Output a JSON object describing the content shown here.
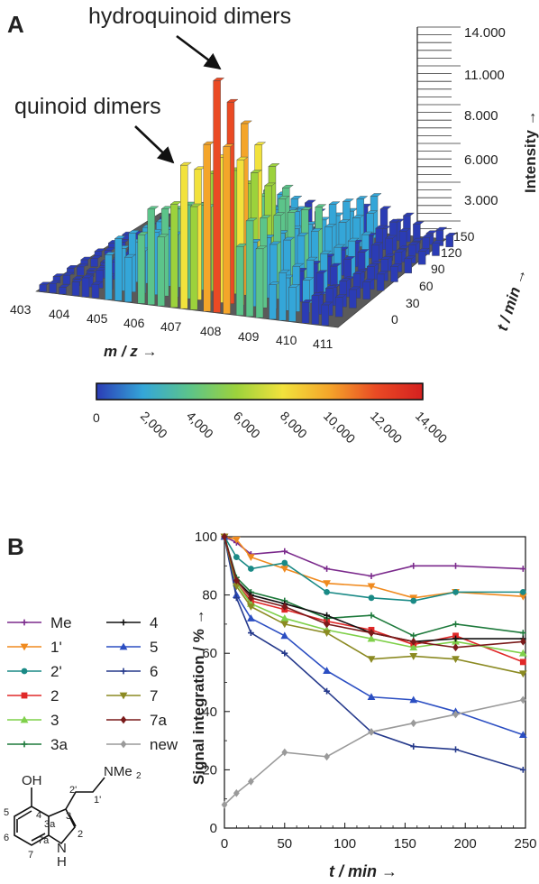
{
  "panelA": {
    "panel_label": "A",
    "annotation_hydro": "hydroquinoid dimers",
    "annotation_quinoid": "quinoid dimers",
    "x_ticks": [
      "403",
      "404",
      "405",
      "406",
      "407",
      "408",
      "409",
      "410",
      "411"
    ],
    "t_ticks": [
      "0",
      "30",
      "60",
      "90",
      "120",
      "150"
    ],
    "intensity_ticks": [
      "3.000",
      "6.000",
      "8.000",
      "11.000",
      "14.000"
    ],
    "intensity_label": "Intensity →",
    "x_label": "m / z →",
    "t_label": "t / min →",
    "colorbar_ticks": [
      "0",
      "2,000",
      "4,000",
      "6,000",
      "8,000",
      "10,000",
      "12,000",
      "14,000"
    ],
    "colorbar_colors": [
      "#2b3cb5",
      "#34a6d8",
      "#5cc48a",
      "#9cd23c",
      "#f2e23c",
      "#f4a52a",
      "#ea4a24",
      "#d42020"
    ]
  },
  "panelB": {
    "panel_label": "B",
    "structure": {
      "oh": "OH",
      "nme2": "NMe",
      "nme2_sub": "2",
      "nh_n": "N",
      "nh_h": "H",
      "atoms": [
        "4",
        "3a",
        "3",
        "2",
        "7a",
        "7",
        "6",
        "5",
        "2'",
        "1'"
      ]
    },
    "chart_data": {
      "type": "line",
      "xlabel": "t / min →",
      "ylabel": "Signal integration / % →",
      "xlim": [
        0,
        250
      ],
      "ylim": [
        0,
        100
      ],
      "x_ticks": [
        "0",
        "50",
        "100",
        "150",
        "200",
        "250"
      ],
      "y_ticks": [
        "0",
        "20",
        "40",
        "60",
        "80",
        "100"
      ],
      "x": [
        0,
        10,
        22,
        50,
        85,
        122,
        157,
        192,
        248
      ],
      "series": [
        {
          "name": "Me",
          "color": "#7b2a8c",
          "marker": "plus",
          "values": [
            100,
            98,
            94,
            95,
            89,
            86.5,
            90,
            90,
            89
          ]
        },
        {
          "name": "1'",
          "color": "#f08a1e",
          "marker": "tri-down",
          "values": [
            100,
            99,
            93,
            89,
            84,
            83,
            79,
            81,
            79.5
          ]
        },
        {
          "name": "2'",
          "color": "#1a8a86",
          "marker": "circle",
          "values": [
            100,
            93,
            89,
            91,
            81,
            79,
            78,
            81,
            81
          ]
        },
        {
          "name": "2",
          "color": "#e02828",
          "marker": "square",
          "values": [
            100,
            84,
            78,
            75,
            71,
            68,
            63,
            66,
            57
          ]
        },
        {
          "name": "3",
          "color": "#7fd04a",
          "marker": "tri-up",
          "values": [
            100,
            84,
            77,
            72,
            68,
            65,
            62,
            64,
            60
          ]
        },
        {
          "name": "3a",
          "color": "#1e7a3c",
          "marker": "plus",
          "values": [
            100,
            86,
            81,
            78,
            72,
            73,
            66,
            70,
            67
          ]
        },
        {
          "name": "4",
          "color": "#111111",
          "marker": "plus",
          "values": [
            100,
            85,
            80,
            77,
            73,
            67,
            64,
            65,
            65
          ]
        },
        {
          "name": "5",
          "color": "#2b4ec2",
          "marker": "tri-up",
          "values": [
            100,
            80,
            72,
            66,
            54,
            45,
            44,
            40,
            32
          ]
        },
        {
          "name": "6",
          "color": "#263a8c",
          "marker": "plus",
          "values": [
            100,
            79,
            67,
            60,
            47,
            33,
            28,
            27,
            20
          ]
        },
        {
          "name": "7",
          "color": "#8b8a22",
          "marker": "tri-down",
          "values": [
            100,
            83,
            76,
            70,
            67,
            58,
            59,
            58,
            53
          ]
        },
        {
          "name": "7a",
          "color": "#7a1a1a",
          "marker": "diamond",
          "values": [
            100,
            85,
            79,
            76,
            70,
            67,
            64,
            62,
            64
          ]
        },
        {
          "name": "new",
          "color": "#9a9a9a",
          "marker": "diamond",
          "values": [
            8,
            12,
            16,
            26,
            24.5,
            33,
            36,
            39,
            44
          ]
        }
      ]
    }
  }
}
